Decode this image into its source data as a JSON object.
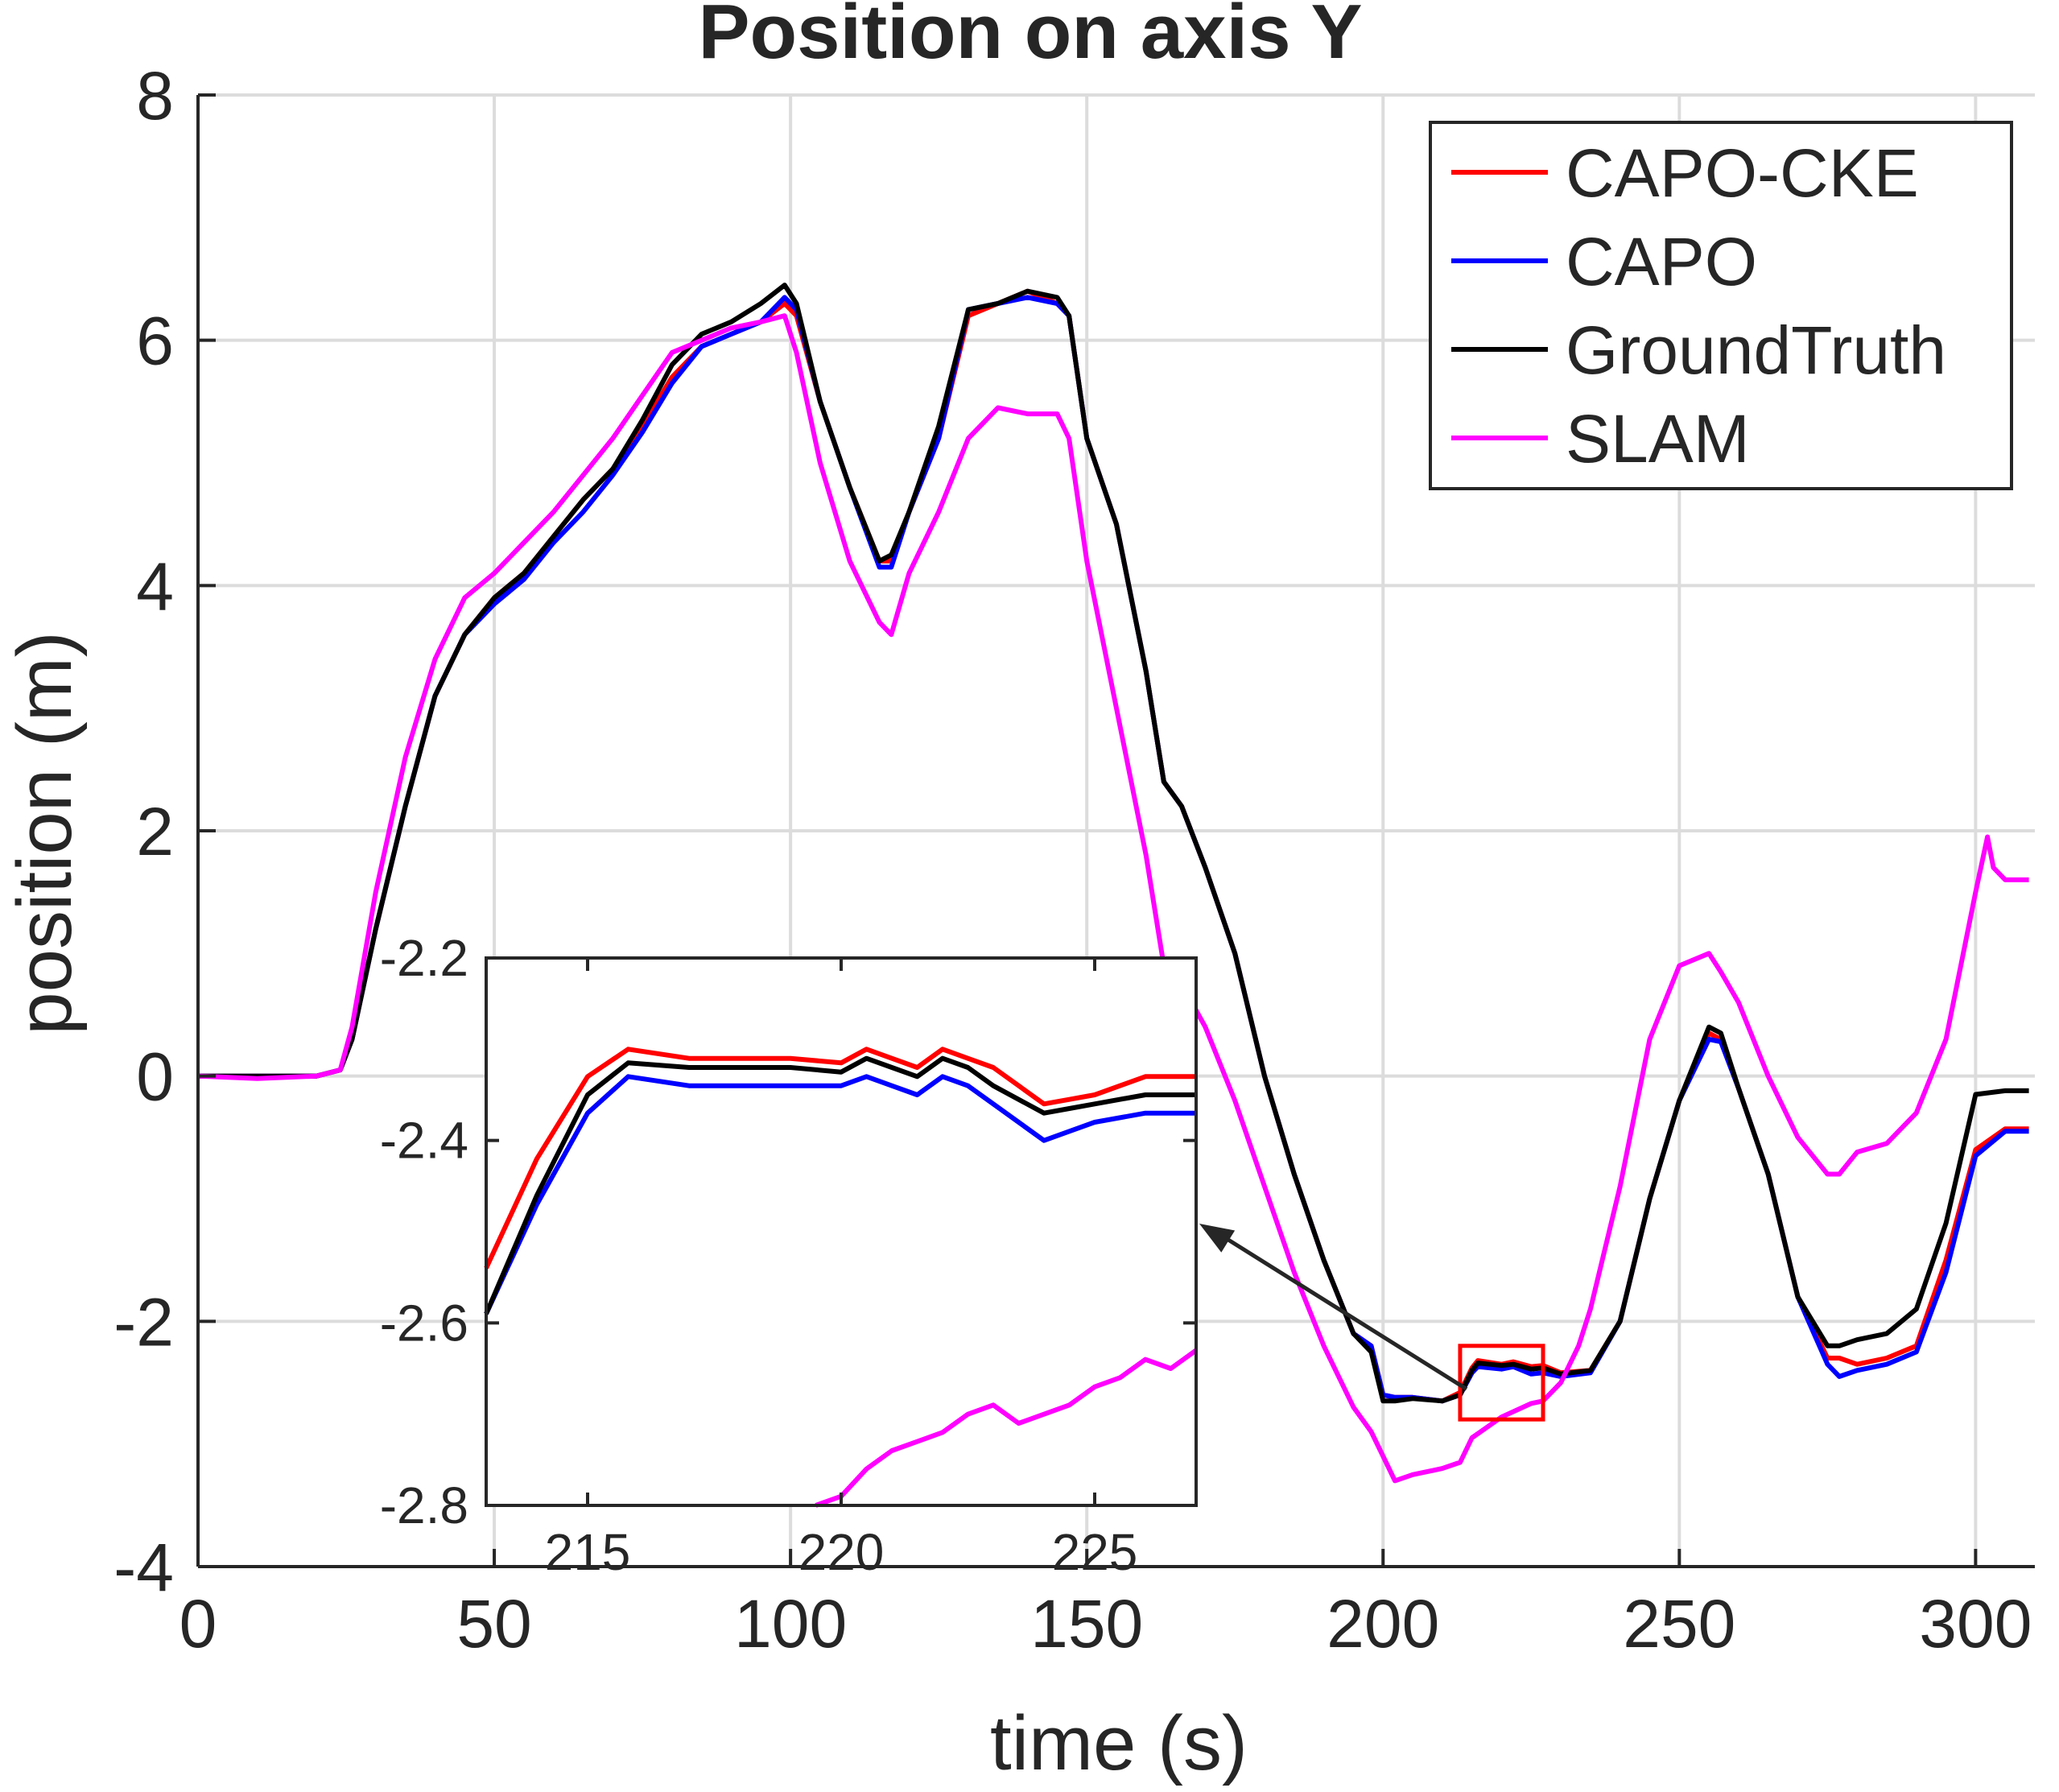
{
  "chart_data": {
    "type": "line",
    "title": "Position on axis Y",
    "xlabel": "time (s)",
    "ylabel": "position (m)",
    "xlim": [
      0,
      310
    ],
    "ylim": [
      -4,
      8
    ],
    "grid": true,
    "legend_position": "top-right",
    "x_ticks": [
      0,
      50,
      100,
      150,
      200,
      250,
      300
    ],
    "x_tick_labels": [
      "0",
      "50",
      "100",
      "150",
      "200",
      "250",
      "300"
    ],
    "y_ticks": [
      -4,
      -2,
      0,
      2,
      4,
      6,
      8
    ],
    "y_tick_labels": [
      "-4",
      "-2",
      "0",
      "2",
      "4",
      "6",
      "8"
    ],
    "highlight_box": {
      "x": [
        213,
        227
      ],
      "y": [
        -2.8,
        -2.2
      ],
      "color": "#ff0000"
    },
    "series": [
      {
        "name": "CAPO-CKE",
        "color": "#ff0000",
        "x": [
          0,
          10,
          20,
          24,
          26,
          30,
          35,
          40,
          45,
          50,
          55,
          60,
          65,
          70,
          75,
          80,
          85,
          90,
          95,
          99,
          101,
          105,
          110,
          115,
          117,
          120,
          125,
          130,
          135,
          140,
          145,
          147,
          150,
          155,
          160,
          163,
          166,
          170,
          175,
          180,
          185,
          190,
          195,
          198,
          200,
          202,
          205,
          210,
          213,
          215,
          216,
          220,
          222,
          225,
          227,
          230,
          235,
          240,
          245,
          250,
          255,
          257,
          260,
          265,
          270,
          275,
          277,
          280,
          285,
          290,
          295,
          300,
          305,
          309
        ],
        "y": [
          0,
          0,
          0,
          0.05,
          0.3,
          1.2,
          2.2,
          3.1,
          3.6,
          3.9,
          4.1,
          4.4,
          4.7,
          4.95,
          5.3,
          5.7,
          5.95,
          6.05,
          6.15,
          6.3,
          6.2,
          5.5,
          4.8,
          4.2,
          4.2,
          4.6,
          5.2,
          6.2,
          6.3,
          6.4,
          6.3,
          6.2,
          5.2,
          4.5,
          3.3,
          2.4,
          2.2,
          1.7,
          1.0,
          0.0,
          -0.8,
          -1.5,
          -2.1,
          -2.2,
          -2.6,
          -2.62,
          -2.62,
          -2.65,
          -2.58,
          -2.38,
          -2.32,
          -2.35,
          -2.33,
          -2.37,
          -2.36,
          -2.42,
          -2.4,
          -2.0,
          -1.0,
          -0.2,
          0.35,
          0.3,
          -0.1,
          -0.8,
          -1.8,
          -2.3,
          -2.3,
          -2.35,
          -2.3,
          -2.2,
          -1.5,
          -0.6,
          -0.43,
          -0.43
        ]
      },
      {
        "name": "CAPO",
        "color": "#0000ff",
        "x": [
          0,
          10,
          20,
          24,
          26,
          30,
          35,
          40,
          45,
          50,
          55,
          60,
          65,
          70,
          75,
          80,
          85,
          90,
          95,
          99,
          101,
          105,
          110,
          115,
          117,
          120,
          125,
          130,
          135,
          140,
          145,
          147,
          150,
          155,
          160,
          163,
          166,
          170,
          175,
          180,
          185,
          190,
          195,
          198,
          200,
          202,
          205,
          210,
          213,
          215,
          216,
          220,
          222,
          225,
          227,
          230,
          235,
          240,
          245,
          250,
          255,
          257,
          260,
          265,
          270,
          275,
          277,
          280,
          285,
          290,
          295,
          300,
          305,
          309
        ],
        "y": [
          0,
          0,
          0,
          0.05,
          0.3,
          1.2,
          2.2,
          3.1,
          3.6,
          3.85,
          4.05,
          4.35,
          4.6,
          4.9,
          5.25,
          5.65,
          5.95,
          6.05,
          6.15,
          6.35,
          6.25,
          5.5,
          4.8,
          4.15,
          4.15,
          4.6,
          5.2,
          6.25,
          6.3,
          6.35,
          6.3,
          6.2,
          5.2,
          4.5,
          3.3,
          2.4,
          2.2,
          1.7,
          1.0,
          0.0,
          -0.8,
          -1.5,
          -2.1,
          -2.2,
          -2.6,
          -2.62,
          -2.62,
          -2.65,
          -2.6,
          -2.42,
          -2.37,
          -2.39,
          -2.37,
          -2.43,
          -2.42,
          -2.45,
          -2.42,
          -2.0,
          -1.0,
          -0.2,
          0.3,
          0.28,
          -0.1,
          -0.8,
          -1.8,
          -2.35,
          -2.45,
          -2.4,
          -2.35,
          -2.25,
          -1.6,
          -0.65,
          -0.45,
          -0.45
        ]
      },
      {
        "name": "GroundTruth",
        "color": "#000000",
        "x": [
          0,
          10,
          20,
          24,
          26,
          30,
          35,
          40,
          45,
          50,
          55,
          60,
          65,
          70,
          75,
          80,
          85,
          90,
          95,
          99,
          101,
          105,
          110,
          115,
          117,
          120,
          125,
          130,
          135,
          140,
          145,
          147,
          150,
          155,
          160,
          163,
          166,
          170,
          175,
          180,
          185,
          190,
          195,
          198,
          200,
          202,
          205,
          210,
          213,
          215,
          216,
          220,
          222,
          225,
          227,
          230,
          235,
          240,
          245,
          250,
          255,
          257,
          260,
          265,
          270,
          275,
          277,
          280,
          285,
          290,
          295,
          300,
          305,
          309
        ],
        "y": [
          0,
          0,
          0,
          0.05,
          0.3,
          1.2,
          2.2,
          3.1,
          3.6,
          3.9,
          4.1,
          4.4,
          4.7,
          4.95,
          5.35,
          5.8,
          6.05,
          6.15,
          6.3,
          6.45,
          6.3,
          5.5,
          4.8,
          4.2,
          4.25,
          4.6,
          5.3,
          6.25,
          6.3,
          6.4,
          6.35,
          6.2,
          5.2,
          4.5,
          3.3,
          2.4,
          2.2,
          1.7,
          1.0,
          0.0,
          -0.8,
          -1.5,
          -2.1,
          -2.25,
          -2.65,
          -2.65,
          -2.63,
          -2.65,
          -2.6,
          -2.4,
          -2.34,
          -2.36,
          -2.35,
          -2.39,
          -2.38,
          -2.43,
          -2.4,
          -2.0,
          -1.0,
          -0.2,
          0.4,
          0.35,
          -0.1,
          -0.8,
          -1.8,
          -2.2,
          -2.2,
          -2.15,
          -2.1,
          -1.9,
          -1.2,
          -0.15,
          -0.12,
          -0.12
        ]
      },
      {
        "name": "SLAM",
        "color": "#ff00ff",
        "x": [
          0,
          10,
          20,
          24,
          26,
          30,
          35,
          40,
          45,
          50,
          55,
          60,
          65,
          70,
          75,
          80,
          85,
          90,
          95,
          99,
          101,
          105,
          110,
          115,
          117,
          120,
          125,
          130,
          135,
          140,
          145,
          147,
          150,
          155,
          160,
          163,
          166,
          170,
          175,
          180,
          185,
          190,
          195,
          198,
          200,
          202,
          205,
          210,
          213,
          215,
          220,
          225,
          227,
          230,
          233,
          235,
          240,
          245,
          250,
          255,
          257,
          260,
          265,
          270,
          275,
          277,
          280,
          285,
          290,
          295,
          300,
          302,
          303,
          305,
          309
        ],
        "y": [
          0,
          -0.02,
          0,
          0.05,
          0.4,
          1.5,
          2.6,
          3.4,
          3.9,
          4.1,
          4.35,
          4.6,
          4.9,
          5.2,
          5.55,
          5.9,
          6.0,
          6.1,
          6.15,
          6.2,
          5.9,
          5.0,
          4.2,
          3.7,
          3.6,
          4.1,
          4.6,
          5.2,
          5.45,
          5.4,
          5.4,
          5.2,
          4.2,
          3.0,
          1.8,
          0.9,
          0.75,
          0.4,
          -0.2,
          -0.9,
          -1.6,
          -2.2,
          -2.7,
          -2.9,
          -3.1,
          -3.3,
          -3.25,
          -3.2,
          -3.15,
          -2.95,
          -2.78,
          -2.67,
          -2.65,
          -2.5,
          -2.2,
          -1.9,
          -0.9,
          0.3,
          0.9,
          1.0,
          0.85,
          0.6,
          0.0,
          -0.5,
          -0.8,
          -0.8,
          -0.62,
          -0.55,
          -0.3,
          0.3,
          1.5,
          1.95,
          1.7,
          1.6,
          1.6
        ]
      }
    ],
    "inset": {
      "xlim": [
        213,
        227
      ],
      "ylim": [
        -2.8,
        -2.2
      ],
      "x_ticks": [
        215,
        220,
        225
      ],
      "x_tick_labels": [
        "215",
        "220",
        "225"
      ],
      "y_ticks": [
        -2.8,
        -2.6,
        -2.4,
        -2.2
      ],
      "y_tick_labels": [
        "-2.8",
        "-2.6",
        "-2.4",
        "-2.2"
      ],
      "series": [
        {
          "name": "CAPO-CKE",
          "color": "#ff0000",
          "x": [
            213,
            214,
            215,
            215.8,
            217,
            218,
            219,
            220,
            220.5,
            221,
            221.5,
            222,
            222.5,
            223,
            224,
            224.5,
            225,
            226,
            227
          ],
          "y": [
            -2.54,
            -2.42,
            -2.33,
            -2.3,
            -2.31,
            -2.31,
            -2.31,
            -2.315,
            -2.3,
            -2.31,
            -2.32,
            -2.3,
            -2.31,
            -2.32,
            -2.36,
            -2.355,
            -2.35,
            -2.33,
            -2.33
          ]
        },
        {
          "name": "CAPO",
          "color": "#0000ff",
          "x": [
            213,
            214,
            215,
            215.8,
            217,
            218,
            219,
            220,
            220.5,
            221,
            221.5,
            222,
            222.5,
            223,
            224,
            224.5,
            225,
            226,
            227
          ],
          "y": [
            -2.59,
            -2.47,
            -2.37,
            -2.33,
            -2.34,
            -2.34,
            -2.34,
            -2.34,
            -2.33,
            -2.34,
            -2.35,
            -2.33,
            -2.34,
            -2.36,
            -2.4,
            -2.39,
            -2.38,
            -2.37,
            -2.37
          ]
        },
        {
          "name": "GroundTruth",
          "color": "#000000",
          "x": [
            213,
            214,
            215,
            215.8,
            217,
            218,
            219,
            220,
            220.5,
            221,
            221.5,
            222,
            222.5,
            223,
            224,
            224.5,
            225,
            226,
            227
          ],
          "y": [
            -2.59,
            -2.46,
            -2.35,
            -2.315,
            -2.32,
            -2.32,
            -2.32,
            -2.325,
            -2.31,
            -2.32,
            -2.33,
            -2.31,
            -2.32,
            -2.34,
            -2.37,
            -2.365,
            -2.36,
            -2.35,
            -2.35
          ]
        },
        {
          "name": "SLAM",
          "color": "#ff00ff",
          "x": [
            219.5,
            220,
            220.5,
            221,
            221.5,
            222,
            222.5,
            223,
            223.5,
            224,
            224.5,
            225,
            225.5,
            226,
            226.5,
            227
          ],
          "y": [
            -2.8,
            -2.79,
            -2.76,
            -2.74,
            -2.73,
            -2.72,
            -2.7,
            -2.69,
            -2.71,
            -2.7,
            -2.69,
            -2.67,
            -2.66,
            -2.64,
            -2.65,
            -2.63
          ]
        }
      ]
    }
  }
}
